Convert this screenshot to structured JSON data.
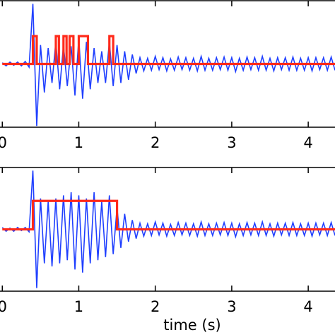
{
  "chart_data": [
    {
      "type": "line",
      "xlim": [
        -0.03,
        4.35
      ],
      "xticks": [
        0,
        1,
        2,
        3,
        4
      ],
      "ylim": [
        -1,
        1
      ],
      "series": [
        {
          "color": "#1f3fff",
          "x": [
            0,
            0.05,
            0.1,
            0.15,
            0.2,
            0.25,
            0.3,
            0.35,
            0.4,
            0.45,
            0.5,
            0.55,
            0.6,
            0.65,
            0.7,
            0.75,
            0.8,
            0.85,
            0.9,
            0.95,
            1,
            1.05,
            1.1,
            1.15,
            1.2,
            1.25,
            1.3,
            1.35,
            1.4,
            1.45,
            1.5,
            1.55,
            1.6,
            1.65,
            1.7,
            1.75,
            1.8,
            1.85,
            1.9,
            1.95,
            2,
            2.05,
            2.1,
            2.15,
            2.2,
            2.25,
            2.3,
            2.35,
            2.4,
            2.45,
            2.5,
            2.55,
            2.6,
            2.65,
            2.7,
            2.75,
            2.8,
            2.85,
            2.9,
            2.95,
            3,
            3.05,
            3.1,
            3.15,
            3.2,
            3.25,
            3.3,
            3.35,
            3.4,
            3.45,
            3.5,
            3.55,
            3.6,
            3.65,
            3.7,
            3.75,
            3.8,
            3.85,
            3.9,
            3.95,
            4,
            4.05,
            4.1,
            4.15,
            4.2,
            4.25,
            4.3,
            4.35
          ],
          "values": [
            0.02,
            -0.03,
            0.03,
            -0.02,
            0.03,
            -0.03,
            0.04,
            -0.05,
            0.95,
            -0.98,
            0.3,
            -0.45,
            0.25,
            -0.3,
            0.35,
            -0.4,
            0.3,
            -0.35,
            0.28,
            -0.5,
            0.4,
            -0.55,
            0.35,
            -0.4,
            0.25,
            -0.3,
            0.2,
            -0.3,
            0.35,
            -0.35,
            0.3,
            -0.3,
            0.2,
            -0.25,
            0.15,
            -0.15,
            0.1,
            -0.11,
            0.09,
            -0.1,
            0.12,
            -0.09,
            0.1,
            -0.11,
            0.08,
            -0.1,
            0.11,
            -0.09,
            0.1,
            -0.1,
            0.09,
            -0.11,
            0.12,
            -0.1,
            0.09,
            -0.1,
            0.1,
            -0.09,
            0.11,
            -0.1,
            0.1,
            -0.12,
            0.09,
            -0.1,
            0.11,
            -0.09,
            0.1,
            -0.1,
            0.12,
            -0.1,
            0.09,
            -0.11,
            0.1,
            -0.09,
            0.1,
            -0.1,
            0.11,
            -0.1,
            0.09,
            -0.1,
            0.1,
            -0.11,
            0.1,
            -0.09,
            0.1,
            -0.1,
            0.11,
            -0.1
          ]
        },
        {
          "color": "#ff2a1a",
          "x": [
            0,
            0.4,
            0.4,
            0.45,
            0.45,
            0.7,
            0.7,
            0.74,
            0.74,
            0.8,
            0.8,
            0.84,
            0.84,
            0.88,
            0.88,
            0.93,
            0.93,
            1,
            1,
            1.12,
            1.12,
            1.4,
            1.4,
            1.45,
            1.45,
            4.35
          ],
          "values": [
            0,
            0,
            0.44,
            0.44,
            0,
            0,
            0.44,
            0.44,
            0,
            0,
            0.44,
            0.44,
            0,
            0,
            0.44,
            0.44,
            0,
            0,
            0.44,
            0.44,
            0,
            0,
            0.44,
            0.44,
            0,
            0
          ]
        }
      ]
    },
    {
      "type": "line",
      "xlabel": "time (s)",
      "xlim": [
        -0.03,
        4.35
      ],
      "xticks": [
        0,
        1,
        2,
        3,
        4
      ],
      "ylim": [
        -1,
        1
      ],
      "series": [
        {
          "color": "#1f3fff",
          "x": [
            0,
            0.05,
            0.1,
            0.15,
            0.2,
            0.25,
            0.3,
            0.35,
            0.4,
            0.45,
            0.5,
            0.55,
            0.6,
            0.65,
            0.7,
            0.75,
            0.8,
            0.85,
            0.9,
            0.95,
            1,
            1.05,
            1.1,
            1.15,
            1.2,
            1.25,
            1.3,
            1.35,
            1.4,
            1.45,
            1.5,
            1.55,
            1.6,
            1.65,
            1.7,
            1.75,
            1.8,
            1.85,
            1.9,
            1.95,
            2,
            2.05,
            2.1,
            2.15,
            2.2,
            2.25,
            2.3,
            2.35,
            2.4,
            2.45,
            2.5,
            2.55,
            2.6,
            2.65,
            2.7,
            2.75,
            2.8,
            2.85,
            2.9,
            2.95,
            3,
            3.05,
            3.1,
            3.15,
            3.2,
            3.25,
            3.3,
            3.35,
            3.4,
            3.45,
            3.5,
            3.55,
            3.6,
            3.65,
            3.7,
            3.75,
            3.8,
            3.85,
            3.9,
            3.95,
            4,
            4.05,
            4.1,
            4.15,
            4.2,
            4.25,
            4.3,
            4.35
          ],
          "values": [
            0.03,
            -0.03,
            0.02,
            -0.03,
            0.03,
            -0.02,
            0.03,
            -0.04,
            0.95,
            -0.95,
            0.5,
            -0.55,
            0.45,
            -0.6,
            0.5,
            -0.55,
            0.55,
            -0.5,
            0.6,
            -0.65,
            0.55,
            -0.7,
            0.5,
            -0.55,
            0.6,
            -0.5,
            0.45,
            -0.45,
            0.55,
            -0.4,
            0.35,
            -0.3,
            0.25,
            -0.2,
            0.15,
            -0.15,
            0.1,
            -0.11,
            0.09,
            -0.1,
            0.12,
            -0.09,
            0.1,
            -0.11,
            0.08,
            -0.1,
            0.11,
            -0.09,
            0.1,
            -0.1,
            0.09,
            -0.11,
            0.12,
            -0.1,
            0.09,
            -0.1,
            0.1,
            -0.09,
            0.11,
            -0.1,
            0.1,
            -0.12,
            0.09,
            -0.1,
            0.11,
            -0.09,
            0.1,
            -0.1,
            0.12,
            -0.1,
            0.09,
            -0.11,
            0.1,
            -0.09,
            0.1,
            -0.1,
            0.11,
            -0.1,
            0.09,
            -0.1,
            0.1,
            -0.11,
            0.1,
            -0.09,
            0.1,
            -0.1,
            0.11,
            -0.1
          ]
        },
        {
          "color": "#ff2a1a",
          "x": [
            0,
            0.4,
            0.4,
            1.5,
            1.5,
            4.35
          ],
          "values": [
            0,
            0,
            0.46,
            0.46,
            0,
            0
          ]
        }
      ]
    }
  ]
}
